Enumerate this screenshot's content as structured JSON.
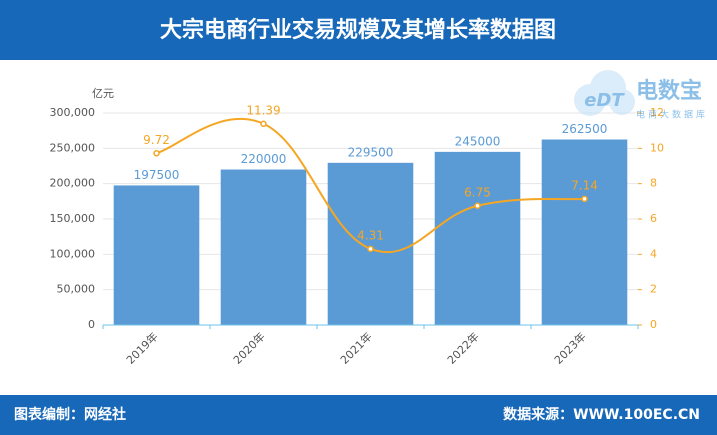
{
  "chart_data": {
    "type": "bar",
    "title": "大宗电商行业交易规模及其增长率数据图",
    "y_label": "亿元",
    "categories": [
      "2019年",
      "2020年",
      "2021年",
      "2022年",
      "2023年"
    ],
    "series": [
      {
        "type": "bar",
        "color": "#5b9bd5",
        "values": [
          197500,
          220000,
          229500,
          245000,
          262500
        ]
      },
      {
        "type": "line",
        "axis": "y2",
        "color": "#f5a623",
        "values": [
          9.72,
          11.39,
          4.31,
          6.75,
          7.14
        ]
      }
    ],
    "ylim": [
      0,
      300000
    ],
    "yticks": [
      0,
      {
        "value": 50000,
        "label": "50,000"
      },
      {
        "value": 100000,
        "label": "100,000"
      },
      {
        "value": 150000,
        "label": "150,000"
      },
      {
        "value": 200000,
        "label": "200,000"
      },
      {
        "value": 250000,
        "label": "250,000"
      },
      {
        "value": 300000,
        "label": "300,000"
      }
    ],
    "y2lim": [
      0,
      12
    ],
    "y2ticks": [
      0,
      2,
      4,
      6,
      8,
      10,
      12
    ],
    "grid": true,
    "logo": {
      "mark": "eDT",
      "title": "电数宝",
      "subtitle": "电商大数据库"
    },
    "footer_left": "图表编制：网经社",
    "footer_right": "数据来源：WWW.100EC.CN"
  }
}
